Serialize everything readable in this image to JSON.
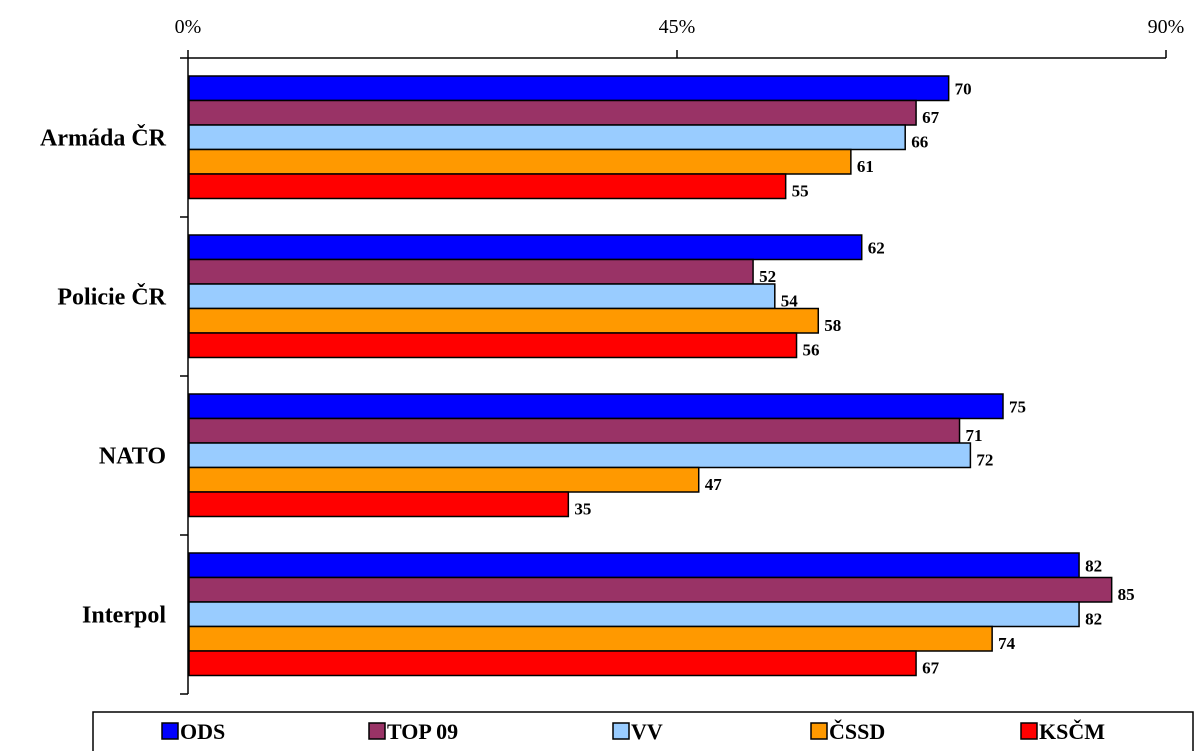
{
  "chart_data": {
    "type": "bar",
    "orientation": "horizontal",
    "categories": [
      "Armáda ČR",
      "Policie ČR",
      "NATO",
      "Interpol"
    ],
    "series": [
      {
        "name": "ODS",
        "color": "#0000FF",
        "values": [
          70,
          62,
          75,
          82
        ]
      },
      {
        "name": "TOP 09",
        "color": "#993366",
        "values": [
          67,
          52,
          71,
          85
        ]
      },
      {
        "name": "VV",
        "color": "#99CCFF",
        "values": [
          66,
          54,
          72,
          82
        ]
      },
      {
        "name": "ČSSD",
        "color": "#FF9900",
        "values": [
          61,
          58,
          47,
          74
        ]
      },
      {
        "name": "KSČM",
        "color": "#FF0000",
        "values": [
          55,
          56,
          35,
          67
        ]
      }
    ],
    "xlim": [
      0,
      90
    ],
    "x_ticks": [
      "0%",
      "45%",
      "90%"
    ],
    "x_axis_position": "top",
    "legend_position": "bottom",
    "grid": false,
    "title": "",
    "xlabel": "",
    "ylabel": ""
  }
}
